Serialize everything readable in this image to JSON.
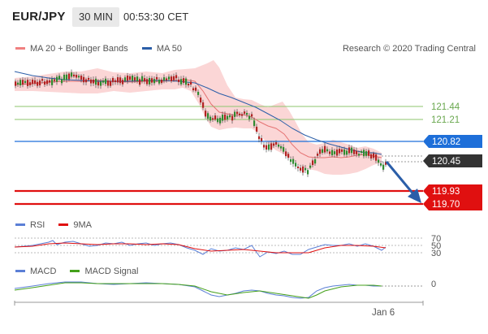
{
  "header": {
    "symbol": "EUR/JPY",
    "timeframe": "30 MIN",
    "time": "00:53:30 CET"
  },
  "main_legend": [
    {
      "label": "MA 20 + Bollinger Bands",
      "color": "#f08080"
    },
    {
      "label": "MA 50",
      "color": "#2b5ea8"
    }
  ],
  "copyright": "Research © 2020 Trading Central",
  "levels": [
    {
      "value": "121.44",
      "kind": "resistance",
      "color": "#6aa84f"
    },
    {
      "value": "121.21",
      "kind": "resistance",
      "color": "#6aa84f"
    },
    {
      "value": "120.82",
      "kind": "pivot",
      "color": "#1e6fd9"
    },
    {
      "value": "120.45",
      "kind": "last",
      "color": "#333333"
    },
    {
      "value": "119.93",
      "kind": "support",
      "color": "#e01010"
    },
    {
      "value": "119.70",
      "kind": "support",
      "color": "#e01010"
    }
  ],
  "rsi_legend": [
    {
      "label": "RSI",
      "color": "#5b7fd6"
    },
    {
      "label": "9MA",
      "color": "#e01010"
    }
  ],
  "rsi_levels": [
    "70",
    "50",
    "30"
  ],
  "macd_legend": [
    {
      "label": "MACD",
      "color": "#5b7fd6"
    },
    {
      "label": "MACD Signal",
      "color": "#44a01a"
    }
  ],
  "macd_zero": "0",
  "x_axis_label": "Jan 6",
  "colors": {
    "accent_blue": "#1e6fd9",
    "support_red": "#e01010",
    "resistance_green": "#6aa84f",
    "bollinger_fill": "#fbd6d6",
    "arrow_blue": "#2b5ea8",
    "candle_up": "#2f8a2f",
    "candle_down": "#b22222"
  }
}
